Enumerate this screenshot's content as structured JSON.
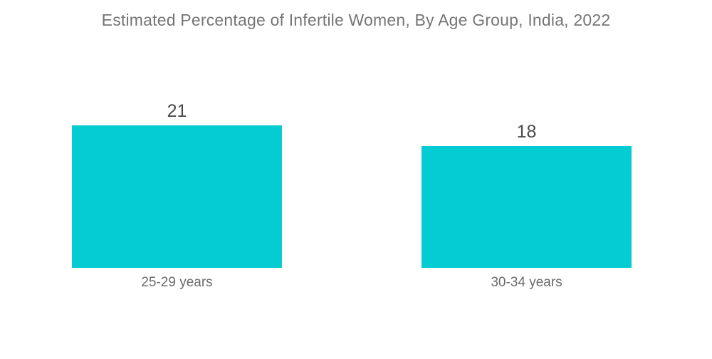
{
  "chart_data": {
    "type": "bar",
    "orientation": "vertical",
    "title": "Estimated Percentage of Infertile Women, By Age Group, India, 2022",
    "categories": [
      "25-29 years",
      "30-34 years"
    ],
    "values": [
      21,
      18
    ],
    "bar_color": "#05CBD2",
    "ylim": [
      0,
      21
    ],
    "xlabel": "",
    "ylabel": "",
    "grid": false,
    "legend": false,
    "data_labels": true
  }
}
